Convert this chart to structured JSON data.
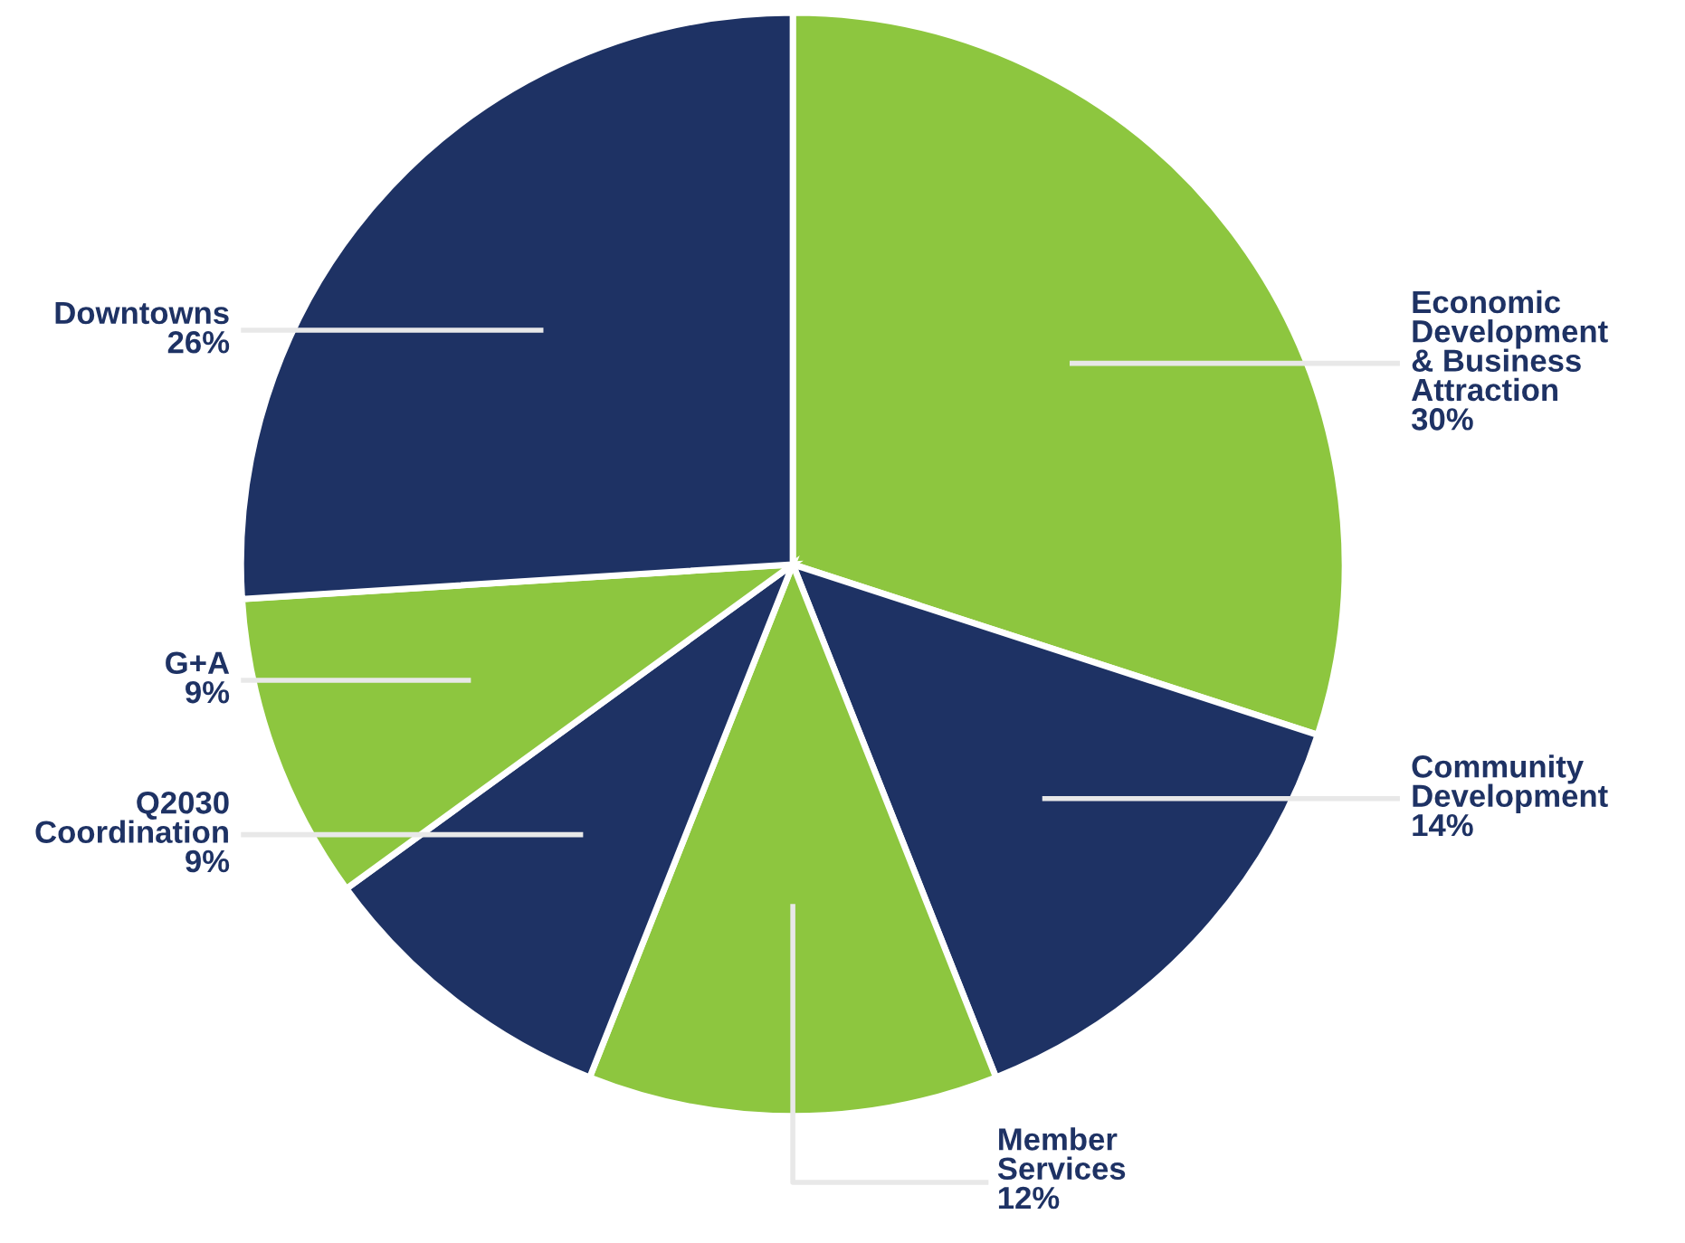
{
  "chart_data": {
    "type": "pie",
    "categories": [
      "Economic\nDevelopment\n& Business\nAttraction",
      "Community\nDevelopment",
      "Member\nServices",
      "Q2030\nCoordination",
      "G+A",
      "Downtowns"
    ],
    "values": [
      30,
      14,
      12,
      9,
      9,
      26
    ],
    "colors": [
      "#8dc63f",
      "#1e3264",
      "#8dc63f",
      "#1e3264",
      "#8dc63f",
      "#1e3264"
    ],
    "value_labels": [
      "30%",
      "14%",
      "12%",
      "9%",
      "9%",
      "26%"
    ]
  }
}
